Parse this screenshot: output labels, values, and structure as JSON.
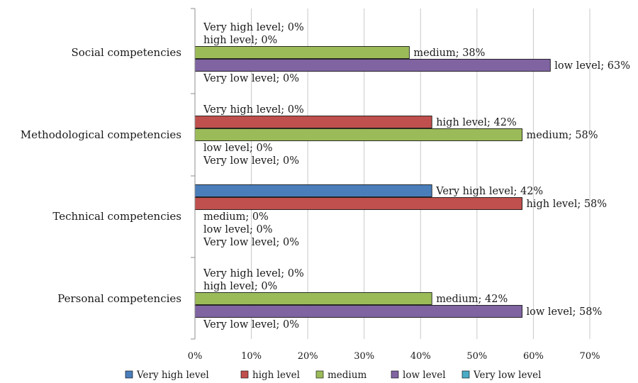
{
  "chart_data": {
    "type": "bar",
    "orientation": "horizontal",
    "categories": [
      "Social competencies",
      "Methodological competencies",
      "Technical competencies",
      "Personal competencies"
    ],
    "series": [
      {
        "name": "Very high level",
        "color": "#4a7ebb",
        "values": [
          0,
          0,
          42,
          0
        ],
        "labels": [
          "Very high level; 0%",
          "Very high level; 0%",
          "Very high level; 42%",
          "Very high level; 0%"
        ]
      },
      {
        "name": "high level",
        "color": "#c0504d",
        "values": [
          0,
          42,
          58,
          0
        ],
        "labels": [
          "high level; 0%",
          "high level; 42%",
          "high level; 58%",
          "high level; 0%"
        ]
      },
      {
        "name": "medium",
        "color": "#9bbb59",
        "values": [
          38,
          58,
          0,
          42
        ],
        "labels": [
          "medium; 38%",
          "medium; 58%",
          "medium; 0%",
          "medium; 42%"
        ]
      },
      {
        "name": "low level",
        "color": "#8064a2",
        "values": [
          63,
          0,
          0,
          58
        ],
        "labels": [
          "low level; 63%",
          "low level; 0%",
          "low level; 0%",
          "low level; 58%"
        ]
      },
      {
        "name": "Very low level",
        "color": "#4bacc6",
        "values": [
          0,
          0,
          0,
          0
        ],
        "labels": [
          "Very low level; 0%",
          "Very low level; 0%",
          "Very low level; 0%",
          "Very low level; 0%"
        ]
      }
    ],
    "xlim": [
      0,
      70
    ],
    "xticks": [
      0,
      10,
      20,
      30,
      40,
      50,
      60,
      70
    ],
    "xtick_labels": [
      "0%",
      "10%",
      "20%",
      "30%",
      "40%",
      "50%",
      "60%",
      "70%"
    ],
    "grid": "vertical",
    "legend": "bottom",
    "title": "",
    "xlabel": "",
    "ylabel": ""
  }
}
